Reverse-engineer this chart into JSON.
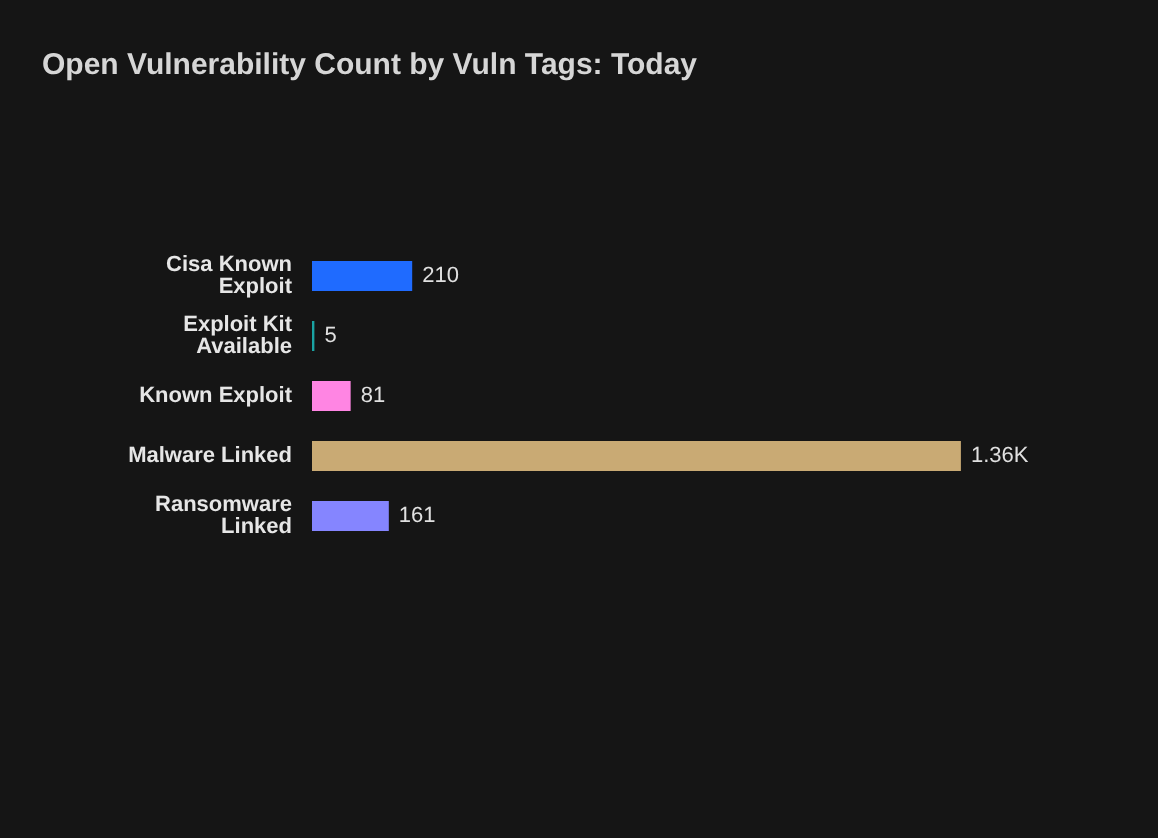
{
  "chart_data": {
    "type": "bar",
    "orientation": "horizontal",
    "title": "Open Vulnerability Count by Vuln Tags: Today",
    "categories": [
      "Cisa Known Exploit",
      "Exploit Kit Available",
      "Known Exploit",
      "Malware Linked",
      "Ransomware Linked"
    ],
    "values": [
      210,
      5,
      81,
      1360,
      161
    ],
    "value_labels": [
      "210",
      "5",
      "81",
      "1.36K",
      "161"
    ],
    "colors": [
      "#1f6bff",
      "#1aa3a3",
      "#ff85e3",
      "#c9aa74",
      "#8585ff"
    ],
    "legend": false
  }
}
